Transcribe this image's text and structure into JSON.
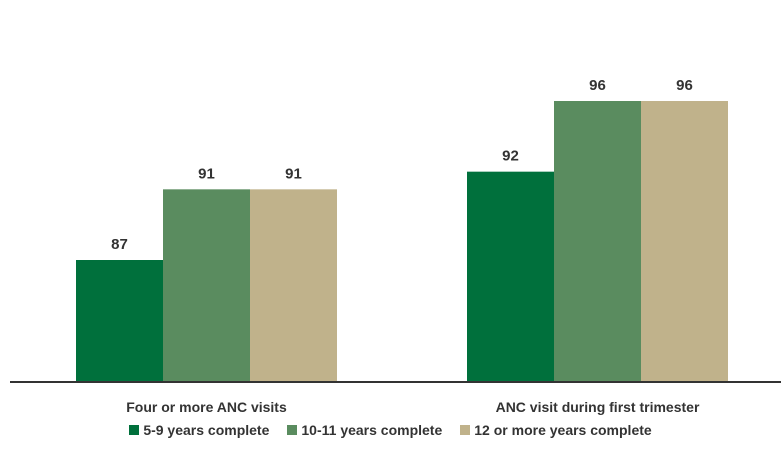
{
  "chart_data": {
    "type": "bar",
    "categories": [
      "Four or more ANC visits",
      "ANC visit during first trimester"
    ],
    "series": [
      {
        "name": "5-9 years complete",
        "values": [
          87,
          92
        ],
        "color": "#00703c"
      },
      {
        "name": "10-11 years complete",
        "values": [
          91,
          96
        ],
        "color": "#5a8c5f"
      },
      {
        "name": "12 or more years complete",
        "values": [
          91,
          96
        ],
        "color": "#c0b28b"
      }
    ],
    "title": "",
    "xlabel": "",
    "ylabel": "",
    "grid": false,
    "legend_position": "bottom"
  }
}
